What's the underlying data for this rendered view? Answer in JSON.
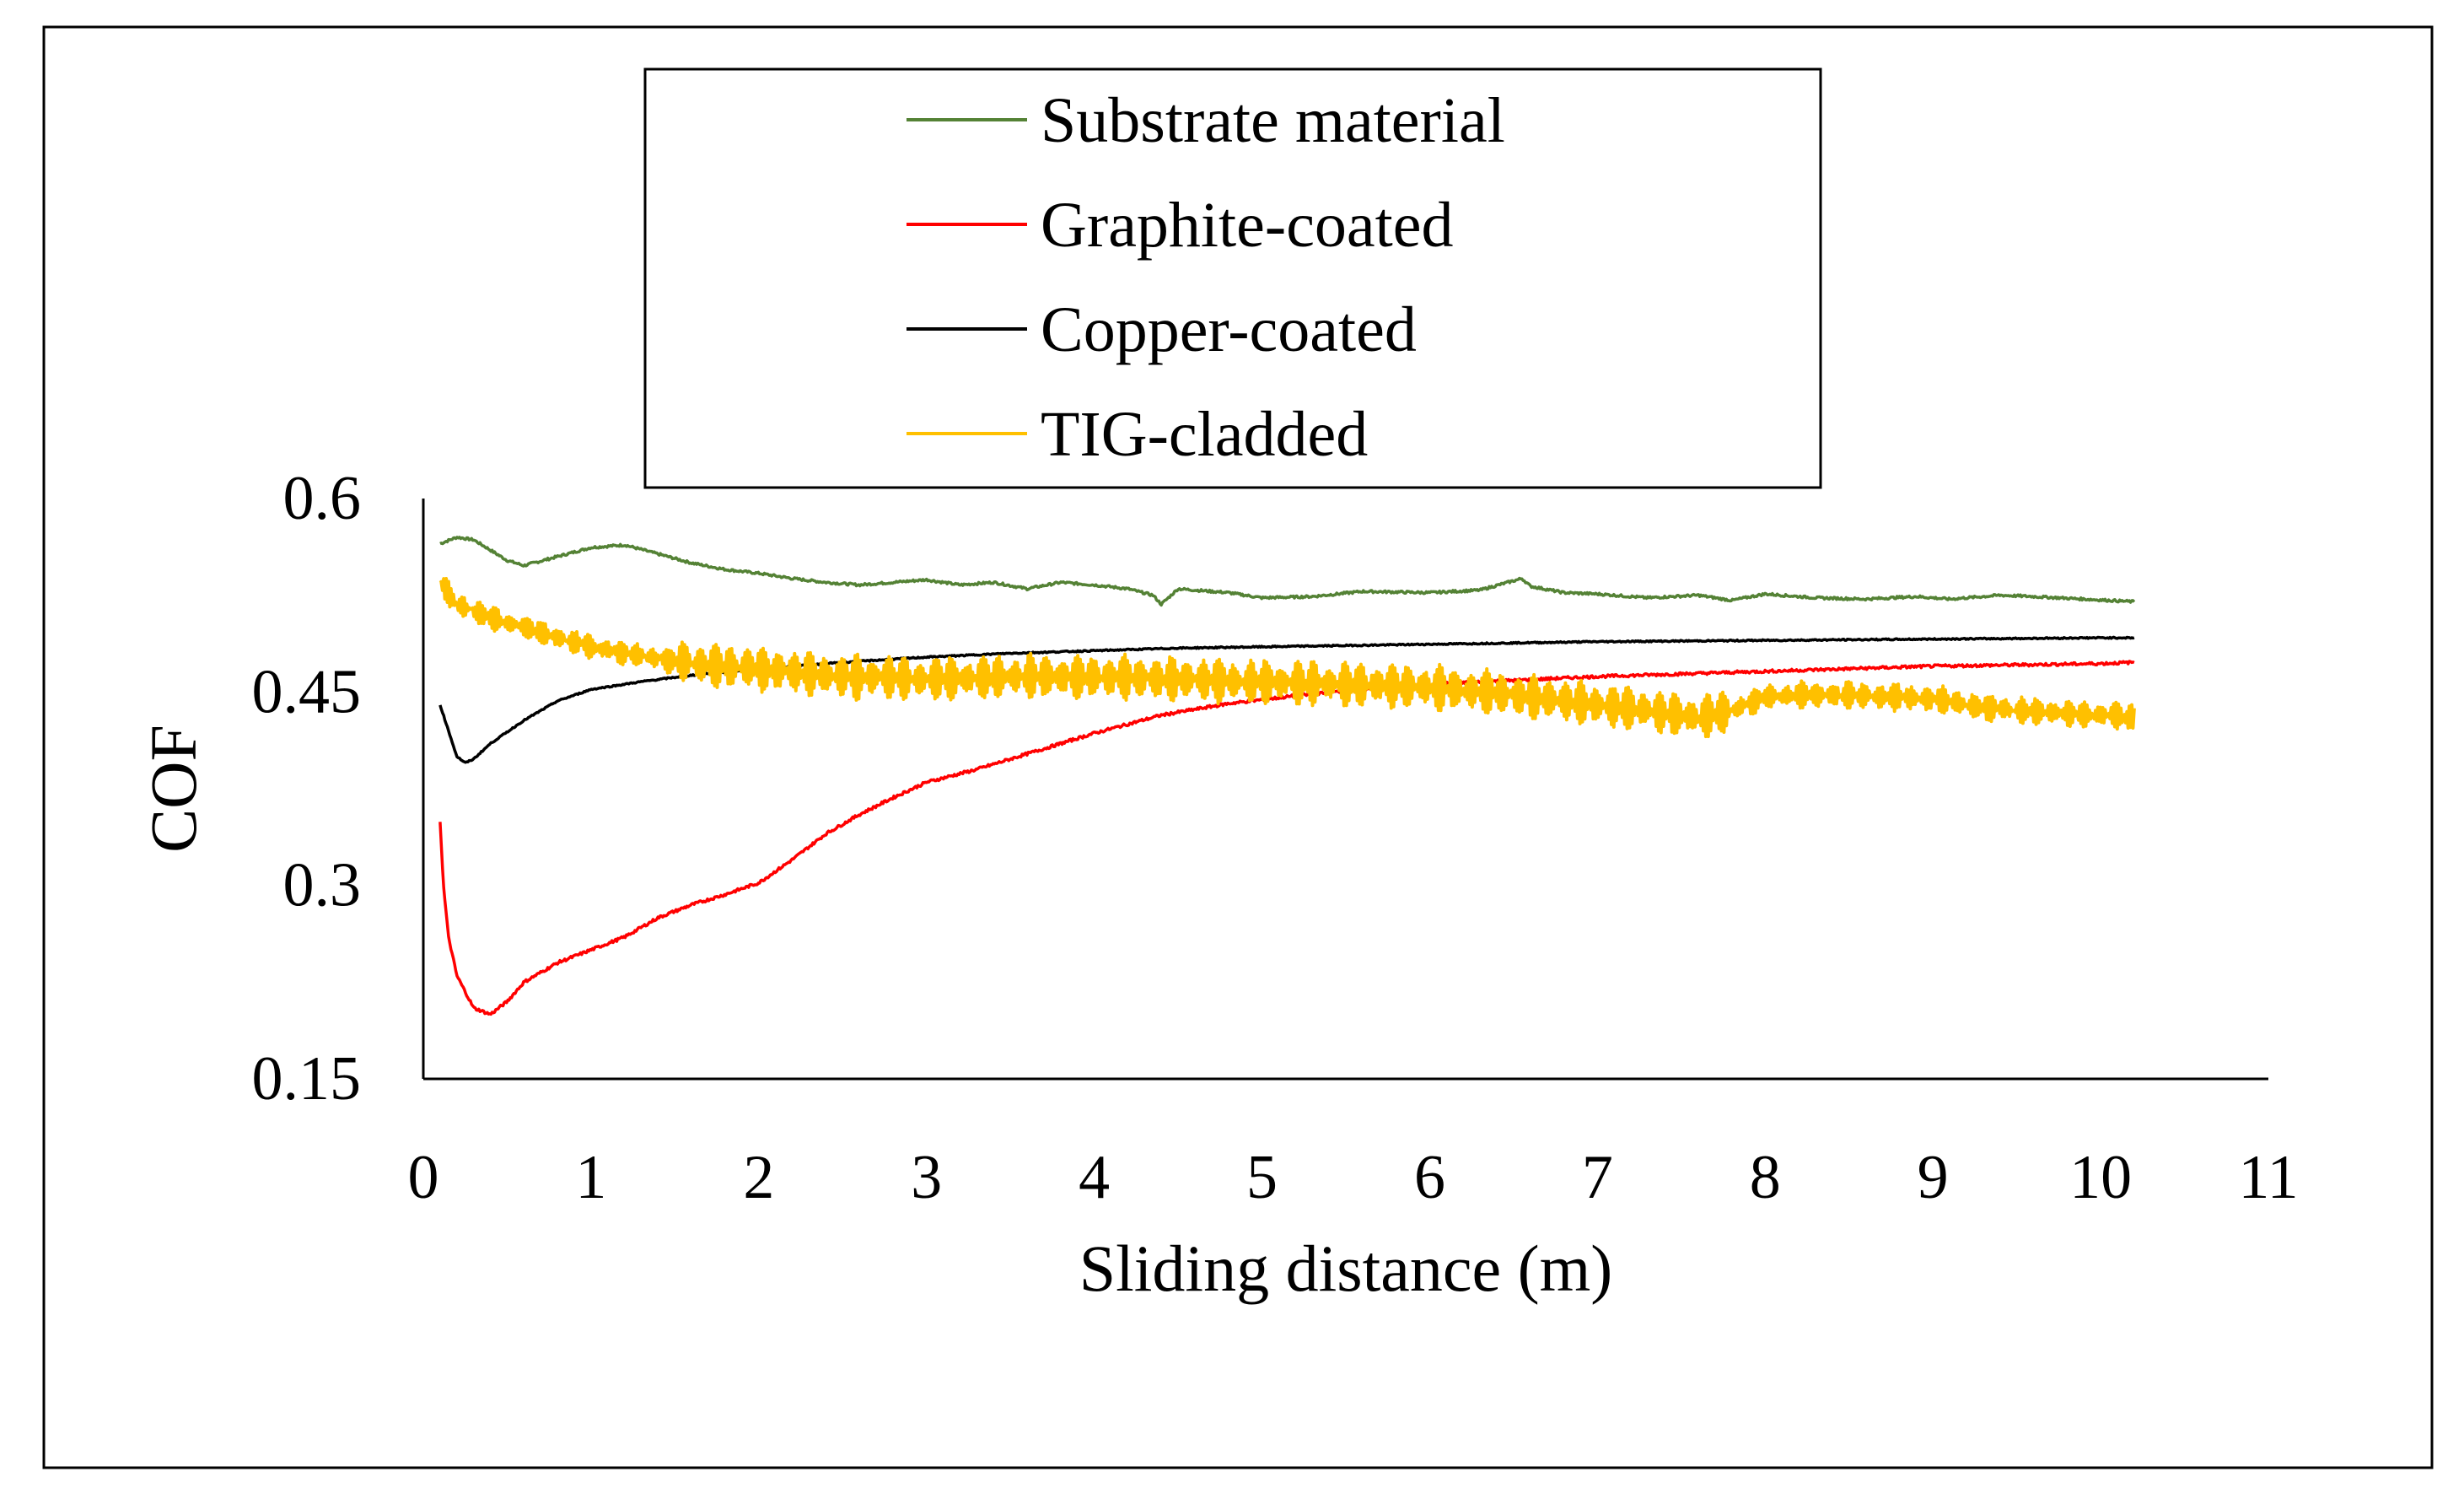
{
  "chart_data": {
    "type": "line",
    "title": "",
    "xlabel": "Sliding distance (m)",
    "ylabel": "COF",
    "xlim": [
      0,
      11
    ],
    "ylim": [
      0.15,
      0.6
    ],
    "xticks": [
      0,
      1,
      2,
      3,
      4,
      5,
      6,
      7,
      8,
      9,
      10,
      11
    ],
    "xtick_labels": [
      "0",
      "1",
      "2",
      "3",
      "4",
      "5",
      "6",
      "7",
      "8",
      "9",
      "10",
      "11"
    ],
    "yticks": [
      0.15,
      0.3,
      0.45,
      0.6
    ],
    "ytick_labels": [
      "0.15",
      "0.3",
      "0.45",
      "0.6"
    ],
    "grid": false,
    "legend_position": "top-center",
    "series": [
      {
        "name": "Substrate material",
        "color": "#548235",
        "x": [
          0.1,
          0.2,
          0.3,
          0.4,
          0.5,
          0.6,
          0.8,
          1.0,
          1.2,
          1.4,
          1.6,
          1.8,
          2.0,
          2.2,
          2.4,
          2.6,
          2.8,
          3.0,
          3.2,
          3.4,
          3.6,
          3.8,
          4.0,
          4.2,
          4.35,
          4.4,
          4.5,
          4.8,
          5.0,
          5.3,
          5.6,
          6.0,
          6.3,
          6.55,
          6.6,
          6.8,
          7.0,
          7.3,
          7.6,
          7.8,
          8.0,
          8.3,
          8.6,
          8.9,
          9.1,
          9.4,
          9.6,
          9.9,
          10.2
        ],
        "y": [
          0.565,
          0.57,
          0.568,
          0.56,
          0.552,
          0.548,
          0.555,
          0.562,
          0.564,
          0.557,
          0.55,
          0.545,
          0.542,
          0.538,
          0.535,
          0.533,
          0.535,
          0.537,
          0.533,
          0.535,
          0.53,
          0.535,
          0.533,
          0.53,
          0.525,
          0.518,
          0.53,
          0.527,
          0.523,
          0.524,
          0.528,
          0.527,
          0.529,
          0.538,
          0.532,
          0.527,
          0.526,
          0.523,
          0.525,
          0.521,
          0.526,
          0.523,
          0.522,
          0.524,
          0.522,
          0.525,
          0.524,
          0.522,
          0.52
        ]
      },
      {
        "name": "Graphite-coated",
        "color": "#ff0000",
        "x": [
          0.1,
          0.12,
          0.15,
          0.2,
          0.3,
          0.4,
          0.5,
          0.6,
          0.8,
          1.0,
          1.2,
          1.4,
          1.6,
          1.8,
          2.0,
          2.2,
          2.4,
          2.6,
          2.8,
          3.0,
          3.3,
          3.6,
          4.0,
          4.4,
          4.8,
          5.2,
          5.6,
          6.0,
          6.5,
          7.0,
          7.5,
          8.0,
          8.5,
          9.0,
          9.5,
          10.0,
          10.2
        ],
        "y": [
          0.35,
          0.3,
          0.26,
          0.23,
          0.205,
          0.2,
          0.21,
          0.225,
          0.24,
          0.25,
          0.26,
          0.275,
          0.285,
          0.293,
          0.302,
          0.32,
          0.34,
          0.355,
          0.368,
          0.38,
          0.39,
          0.402,
          0.418,
          0.432,
          0.441,
          0.447,
          0.452,
          0.456,
          0.459,
          0.462,
          0.464,
          0.466,
          0.468,
          0.47,
          0.471,
          0.472,
          0.473
        ]
      },
      {
        "name": "Copper-coated",
        "color": "#000000",
        "x": [
          0.1,
          0.15,
          0.2,
          0.25,
          0.3,
          0.4,
          0.6,
          0.8,
          1.0,
          1.3,
          1.6,
          2.0,
          2.5,
          3.0,
          3.5,
          4.0,
          4.5,
          5.0,
          6.0,
          7.0,
          8.0,
          9.0,
          10.0,
          10.2
        ],
        "y": [
          0.44,
          0.42,
          0.4,
          0.395,
          0.398,
          0.41,
          0.428,
          0.443,
          0.452,
          0.458,
          0.463,
          0.468,
          0.473,
          0.477,
          0.48,
          0.482,
          0.484,
          0.485,
          0.487,
          0.489,
          0.49,
          0.491,
          0.492,
          0.492
        ]
      },
      {
        "name": "TIG-cladded",
        "color": "#ffc000",
        "x": [
          0.1,
          0.2,
          0.4,
          0.6,
          0.8,
          1.0,
          1.3,
          1.6,
          2.0,
          2.5,
          3.0,
          3.5,
          4.0,
          4.5,
          5.0,
          5.5,
          6.0,
          6.5,
          7.0,
          7.3,
          7.6,
          7.8,
          8.0,
          8.3,
          8.6,
          9.0,
          9.3,
          9.6,
          10.0,
          10.2
        ],
        "y": [
          0.535,
          0.518,
          0.508,
          0.5,
          0.492,
          0.485,
          0.478,
          0.472,
          0.468,
          0.462,
          0.46,
          0.462,
          0.462,
          0.46,
          0.458,
          0.456,
          0.454,
          0.448,
          0.44,
          0.436,
          0.43,
          0.436,
          0.446,
          0.448,
          0.447,
          0.445,
          0.438,
          0.435,
          0.432,
          0.43
        ]
      }
    ]
  }
}
